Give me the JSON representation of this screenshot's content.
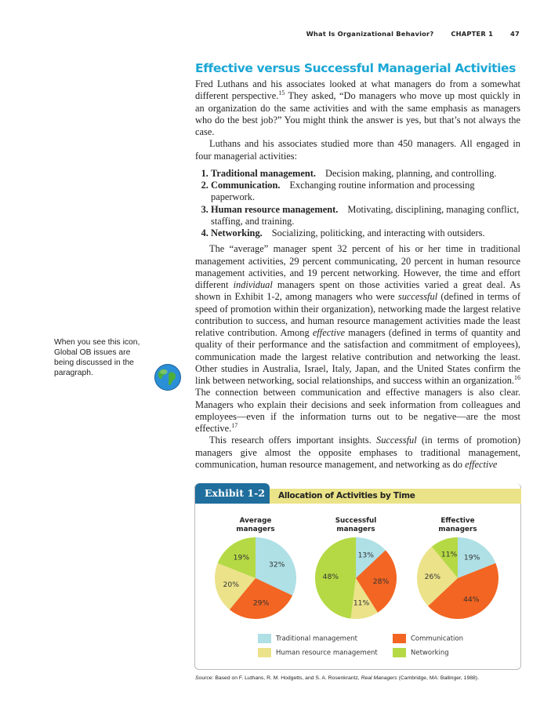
{
  "running_head": {
    "title": "What Is Organizational Behavior?",
    "chapter": "CHAPTER 1",
    "page": "47"
  },
  "heading": "Effective versus Successful Managerial Activities",
  "p1": {
    "a": "Fred Luthans and his associates looked at what managers do from a somewhat different perspective.",
    "sup": "15",
    "b": " They asked, “Do managers who move up most quickly in an organization do the same activities and with the same emphasis as managers who do the best job?” You might think the answer is yes, but that’s not always the case."
  },
  "p2": "Luthans and his associates studied more than 450 managers. All engaged in four managerial activities:",
  "list": [
    {
      "term": "Traditional management.",
      "desc": "Decision making, planning, and controlling."
    },
    {
      "term": "Communication.",
      "desc": "Exchanging routine information and processing paperwork."
    },
    {
      "term": "Human resource management.",
      "desc": "Motivating, disciplining, managing conflict, staffing, and training."
    },
    {
      "term": "Networking.",
      "desc": "Socializing, politicking, and interacting with outsiders."
    }
  ],
  "p3": {
    "a": "The “average” manager spent 32 percent of his or her time in traditional management activities, 29 percent communicating, 20 percent in human resource management activities, and 19 percent networking. However, the time and effort different ",
    "i1": "individual",
    "b": " managers spent on those activities varied a great deal. As shown in Exhibit 1-2, among managers who were ",
    "i2": "successful",
    "c": " (defined in terms of speed of promotion within their organization), networking made the largest relative contribution to success, and human resource management activities made the least relative contribution. Among ",
    "i3": "effective",
    "d": " managers (defined in terms of quantity and quality of their performance and the satisfaction and commitment of employees), communication made the largest relative contribution and networking the least. Other studies in Australia, Israel, Italy, Japan, and the United States confirm the link between networking, social relationships, and success within an organization.",
    "sup1": "16",
    "e": " The connection between communication and effective managers is also clear. Managers who explain their decisions and seek information from colleagues and employees—even if the information turns out to be negative—are the most effective.",
    "sup2": "17"
  },
  "p4": {
    "a": "This research offers important insights. ",
    "i1": "Successful",
    "b": " (in terms of promotion) managers give almost the opposite emphases to traditional management, communication, human resource management, and networking as do ",
    "i2": "effective"
  },
  "margin_note": "When you see this icon, Global OB issues are being discussed in the paragraph.",
  "margin_icon": "globe-icon",
  "exhibit": {
    "label": "Exhibit 1-2",
    "title": "Allocation of Activities by Time",
    "source_label": "Source:",
    "source_a": " Based on F. Luthans, R. M. Hodgetts, and S. A. Rosenkrantz, ",
    "source_book": "Real Managers",
    "source_b": " (Cambridge, MA: Ballinger, 1988)."
  },
  "chart_data": {
    "type": "pie",
    "categories": [
      "Traditional management",
      "Communication",
      "Human resource management",
      "Networking"
    ],
    "colors": [
      "#aee0e6",
      "#f26522",
      "#ebe28a",
      "#b5d944"
    ],
    "series": [
      {
        "name": "Average managers",
        "title_lines": [
          "Average",
          "managers"
        ],
        "values": [
          32,
          29,
          20,
          19
        ]
      },
      {
        "name": "Successful managers",
        "title_lines": [
          "Successful",
          "managers"
        ],
        "values": [
          13,
          28,
          11,
          48
        ]
      },
      {
        "name": "Effective managers",
        "title_lines": [
          "Effective",
          "managers"
        ],
        "values": [
          19,
          44,
          26,
          11
        ]
      }
    ],
    "value_suffix": "%",
    "legend_placement": "bottom"
  }
}
